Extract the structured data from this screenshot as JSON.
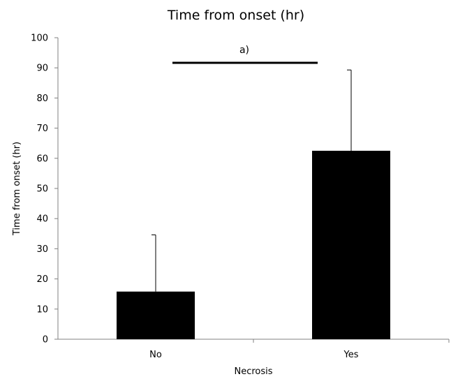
{
  "chart_data": {
    "type": "bar",
    "title": "Time from onset (hr)",
    "xlabel": "Necrosis",
    "ylabel": "Time from onset (hr)",
    "categories": [
      "No",
      "Yes"
    ],
    "values": [
      15.8,
      62.5
    ],
    "error_upper": [
      18.8,
      26.8
    ],
    "ylim": [
      0,
      100
    ],
    "yticks": [
      0,
      10,
      20,
      30,
      40,
      50,
      60,
      70,
      80,
      90,
      100
    ],
    "annotation": "a)",
    "bar_color": "#000000",
    "grid": false,
    "legend": "none"
  }
}
